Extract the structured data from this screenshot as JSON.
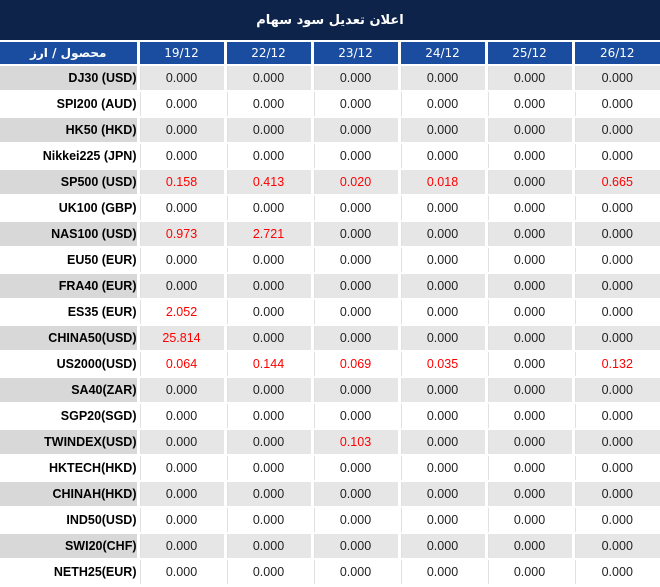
{
  "title": "اعلان تعديل سود سهام",
  "table": {
    "product_header": "محصول / ارز",
    "date_columns": [
      "19/12",
      "22/12",
      "23/12",
      "24/12",
      "25/12",
      "26/12"
    ],
    "rows": [
      {
        "label": "DJ30 (USD)",
        "values": [
          "0.000",
          "0.000",
          "0.000",
          "0.000",
          "0.000",
          "0.000"
        ],
        "red": [
          false,
          false,
          false,
          false,
          false,
          false
        ]
      },
      {
        "label": "SPI200 (AUD)",
        "values": [
          "0.000",
          "0.000",
          "0.000",
          "0.000",
          "0.000",
          "0.000"
        ],
        "red": [
          false,
          false,
          false,
          false,
          false,
          false
        ]
      },
      {
        "label": "HK50 (HKD)",
        "values": [
          "0.000",
          "0.000",
          "0.000",
          "0.000",
          "0.000",
          "0.000"
        ],
        "red": [
          false,
          false,
          false,
          false,
          false,
          false
        ]
      },
      {
        "label": "Nikkei225 (JPN)",
        "values": [
          "0.000",
          "0.000",
          "0.000",
          "0.000",
          "0.000",
          "0.000"
        ],
        "red": [
          false,
          false,
          false,
          false,
          false,
          false
        ]
      },
      {
        "label": "SP500 (USD)",
        "values": [
          "0.158",
          "0.413",
          "0.020",
          "0.018",
          "0.000",
          "0.665"
        ],
        "red": [
          true,
          true,
          true,
          true,
          false,
          true
        ]
      },
      {
        "label": "UK100 (GBP)",
        "values": [
          "0.000",
          "0.000",
          "0.000",
          "0.000",
          "0.000",
          "0.000"
        ],
        "red": [
          false,
          false,
          false,
          false,
          false,
          false
        ]
      },
      {
        "label": "NAS100 (USD)",
        "values": [
          "0.973",
          "2.721",
          "0.000",
          "0.000",
          "0.000",
          "0.000"
        ],
        "red": [
          true,
          true,
          false,
          false,
          false,
          false
        ]
      },
      {
        "label": "EU50 (EUR)",
        "values": [
          "0.000",
          "0.000",
          "0.000",
          "0.000",
          "0.000",
          "0.000"
        ],
        "red": [
          false,
          false,
          false,
          false,
          false,
          false
        ]
      },
      {
        "label": "FRA40 (EUR)",
        "values": [
          "0.000",
          "0.000",
          "0.000",
          "0.000",
          "0.000",
          "0.000"
        ],
        "red": [
          false,
          false,
          false,
          false,
          false,
          false
        ]
      },
      {
        "label": "ES35 (EUR)",
        "values": [
          "2.052",
          "0.000",
          "0.000",
          "0.000",
          "0.000",
          "0.000"
        ],
        "red": [
          true,
          false,
          false,
          false,
          false,
          false
        ]
      },
      {
        "label": "CHINA50(USD)",
        "values": [
          "25.814",
          "0.000",
          "0.000",
          "0.000",
          "0.000",
          "0.000"
        ],
        "red": [
          true,
          false,
          false,
          false,
          false,
          false
        ]
      },
      {
        "label": "US2000(USD)",
        "values": [
          "0.064",
          "0.144",
          "0.069",
          "0.035",
          "0.000",
          "0.132"
        ],
        "red": [
          true,
          true,
          true,
          true,
          false,
          true
        ]
      },
      {
        "label": "SA40(ZAR)",
        "values": [
          "0.000",
          "0.000",
          "0.000",
          "0.000",
          "0.000",
          "0.000"
        ],
        "red": [
          false,
          false,
          false,
          false,
          false,
          false
        ]
      },
      {
        "label": "SGP20(SGD)",
        "values": [
          "0.000",
          "0.000",
          "0.000",
          "0.000",
          "0.000",
          "0.000"
        ],
        "red": [
          false,
          false,
          false,
          false,
          false,
          false
        ]
      },
      {
        "label": "TWINDEX(USD)",
        "values": [
          "0.000",
          "0.000",
          "0.103",
          "0.000",
          "0.000",
          "0.000"
        ],
        "red": [
          false,
          false,
          true,
          false,
          false,
          false
        ]
      },
      {
        "label": "HKTECH(HKD)",
        "values": [
          "0.000",
          "0.000",
          "0.000",
          "0.000",
          "0.000",
          "0.000"
        ],
        "red": [
          false,
          false,
          false,
          false,
          false,
          false
        ]
      },
      {
        "label": "CHINAH(HKD)",
        "values": [
          "0.000",
          "0.000",
          "0.000",
          "0.000",
          "0.000",
          "0.000"
        ],
        "red": [
          false,
          false,
          false,
          false,
          false,
          false
        ]
      },
      {
        "label": "IND50(USD)",
        "values": [
          "0.000",
          "0.000",
          "0.000",
          "0.000",
          "0.000",
          "0.000"
        ],
        "red": [
          false,
          false,
          false,
          false,
          false,
          false
        ]
      },
      {
        "label": "SWI20(CHF)",
        "values": [
          "0.000",
          "0.000",
          "0.000",
          "0.000",
          "0.000",
          "0.000"
        ],
        "red": [
          false,
          false,
          false,
          false,
          false,
          false
        ]
      },
      {
        "label": "NETH25(EUR)",
        "values": [
          "0.000",
          "0.000",
          "0.000",
          "0.000",
          "0.000",
          "0.000"
        ],
        "red": [
          false,
          false,
          false,
          false,
          false,
          false
        ]
      }
    ]
  },
  "colors": {
    "title_bar": "#0d2349",
    "header_row": "#1a4d9f",
    "stripe_label_cell": "#d8d8d8",
    "stripe_value_cell": "#e6e6e6",
    "highlight_value": "#ff0000",
    "text": "#1f1f1f"
  }
}
